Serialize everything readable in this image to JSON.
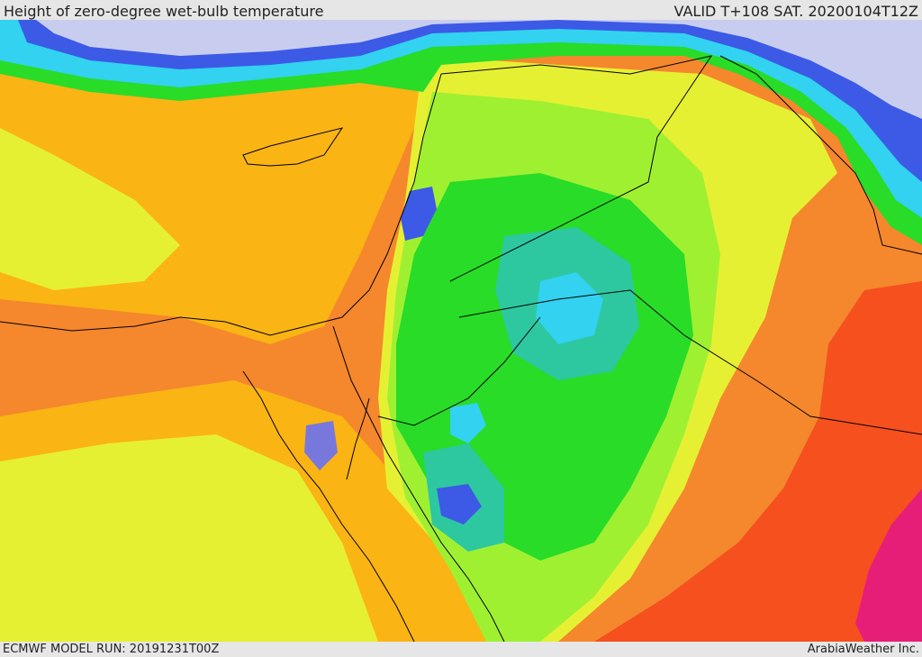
{
  "header": {
    "title": "Height of zero-degree wet-bulb temperature",
    "valid_time": "VALID T+108 SAT. 20200104T12Z"
  },
  "footer": {
    "model_run": "ECMWF MODEL RUN: 20191231T00Z",
    "publisher": "ArabiaWeather Inc."
  },
  "palette": {
    "lavender": "#c8cdf0",
    "blue": "#3c5ae6",
    "violet": "#7878dc",
    "cyan": "#32d2f0",
    "teal": "#2dc8a0",
    "green": "#28dc28",
    "lime": "#a0f032",
    "yellow": "#e6f032",
    "amber": "#fab414",
    "orange": "#f5872d",
    "red_orange": "#f5501e",
    "magenta": "#e61e78"
  }
}
